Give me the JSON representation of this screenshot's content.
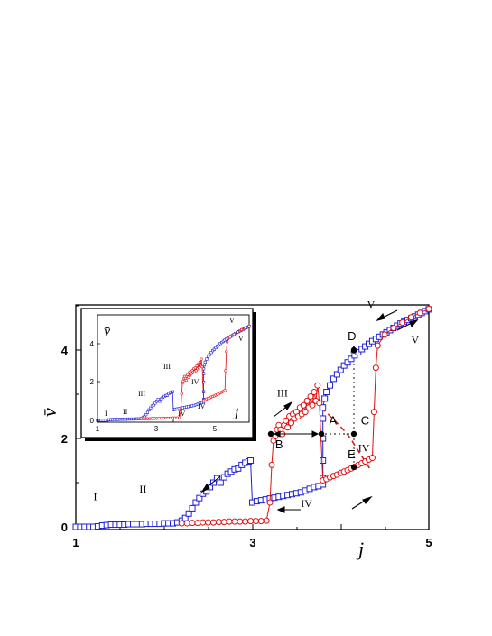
{
  "chart_data": {
    "type": "scatter",
    "xlabel": "j",
    "ylabel": "v̄",
    "xlim": [
      1,
      5
    ],
    "ylim": [
      -0.1,
      5.05
    ],
    "x_ticks": [
      "1",
      "3",
      "5"
    ],
    "y_ticks": [
      "0",
      "2",
      "4"
    ],
    "colors": {
      "decreasing": "#1f1fd6",
      "increasing": "#e01010"
    },
    "series": [
      {
        "key": "decreasing",
        "marker": "square",
        "points": [
          [
            1.0,
            0.0
          ],
          [
            1.05,
            0.0
          ],
          [
            1.1,
            0.0
          ],
          [
            1.15,
            0.0
          ],
          [
            1.2,
            0.0
          ],
          [
            1.25,
            0.01
          ],
          [
            1.3,
            0.03
          ],
          [
            1.35,
            0.04
          ],
          [
            1.4,
            0.05
          ],
          [
            1.45,
            0.05
          ],
          [
            1.5,
            0.05
          ],
          [
            1.55,
            0.05
          ],
          [
            1.6,
            0.06
          ],
          [
            1.65,
            0.06
          ],
          [
            1.7,
            0.06
          ],
          [
            1.75,
            0.06
          ],
          [
            1.8,
            0.07
          ],
          [
            1.85,
            0.07
          ],
          [
            1.9,
            0.07
          ],
          [
            1.95,
            0.07
          ],
          [
            2.0,
            0.08
          ],
          [
            2.05,
            0.08
          ],
          [
            2.1,
            0.08
          ],
          [
            2.15,
            0.1
          ],
          [
            2.2,
            0.14
          ],
          [
            2.24,
            0.2
          ],
          [
            2.28,
            0.3
          ],
          [
            2.32,
            0.42
          ],
          [
            2.36,
            0.55
          ],
          [
            2.4,
            0.65
          ],
          [
            2.44,
            0.75
          ],
          [
            2.48,
            0.8
          ],
          [
            2.52,
            0.9
          ],
          [
            2.56,
            1.0
          ],
          [
            2.6,
            1.1
          ],
          [
            2.64,
            1.0
          ],
          [
            2.68,
            1.12
          ],
          [
            2.72,
            1.2
          ],
          [
            2.76,
            1.25
          ],
          [
            2.8,
            1.3
          ],
          [
            2.84,
            1.32
          ],
          [
            2.88,
            1.4
          ],
          [
            2.92,
            1.45
          ],
          [
            2.96,
            1.48
          ],
          [
            2.98,
            1.5
          ],
          [
            3.0,
            0.55
          ],
          [
            3.05,
            0.58
          ],
          [
            3.1,
            0.6
          ],
          [
            3.15,
            0.62
          ],
          [
            3.2,
            0.64
          ],
          [
            3.25,
            0.66
          ],
          [
            3.3,
            0.68
          ],
          [
            3.35,
            0.7
          ],
          [
            3.4,
            0.72
          ],
          [
            3.45,
            0.74
          ],
          [
            3.5,
            0.76
          ],
          [
            3.55,
            0.78
          ],
          [
            3.6,
            0.82
          ],
          [
            3.65,
            0.86
          ],
          [
            3.7,
            0.9
          ],
          [
            3.75,
            0.92
          ],
          [
            3.8,
            0.96
          ],
          [
            3.8,
            1.1
          ],
          [
            3.8,
            1.5
          ],
          [
            3.8,
            2.0
          ],
          [
            3.8,
            2.45
          ],
          [
            3.8,
            2.7
          ],
          [
            3.82,
            2.9
          ],
          [
            3.84,
            3.05
          ],
          [
            3.88,
            3.2
          ],
          [
            3.92,
            3.35
          ],
          [
            3.96,
            3.45
          ],
          [
            4.0,
            3.55
          ],
          [
            4.04,
            3.65
          ],
          [
            4.08,
            3.72
          ],
          [
            4.12,
            3.8
          ],
          [
            4.16,
            3.88
          ],
          [
            4.2,
            3.95
          ],
          [
            4.24,
            4.02
          ],
          [
            4.28,
            4.08
          ],
          [
            4.32,
            4.14
          ],
          [
            4.36,
            4.2
          ],
          [
            4.4,
            4.25
          ],
          [
            4.44,
            4.3
          ],
          [
            4.48,
            4.35
          ],
          [
            4.52,
            4.4
          ],
          [
            4.56,
            4.45
          ],
          [
            4.6,
            4.5
          ],
          [
            4.64,
            4.55
          ],
          [
            4.68,
            4.6
          ],
          [
            4.72,
            4.64
          ],
          [
            4.76,
            4.68
          ],
          [
            4.8,
            4.72
          ],
          [
            4.84,
            4.76
          ],
          [
            4.88,
            4.8
          ],
          [
            4.92,
            4.84
          ],
          [
            4.96,
            4.88
          ],
          [
            5.0,
            4.92
          ]
        ]
      },
      {
        "key": "increasing",
        "marker": "circle",
        "points": [
          [
            2.2,
            0.08
          ],
          [
            2.26,
            0.08
          ],
          [
            2.32,
            0.09
          ],
          [
            2.38,
            0.09
          ],
          [
            2.44,
            0.1
          ],
          [
            2.5,
            0.1
          ],
          [
            2.56,
            0.1
          ],
          [
            2.62,
            0.11
          ],
          [
            2.68,
            0.11
          ],
          [
            2.74,
            0.12
          ],
          [
            2.8,
            0.12
          ],
          [
            2.86,
            0.12
          ],
          [
            2.92,
            0.12
          ],
          [
            2.98,
            0.13
          ],
          [
            3.04,
            0.13
          ],
          [
            3.1,
            0.13
          ],
          [
            3.16,
            0.14
          ],
          [
            3.2,
            0.55
          ],
          [
            3.22,
            1.4
          ],
          [
            3.24,
            1.95
          ],
          [
            3.26,
            2.05
          ],
          [
            3.28,
            2.2
          ],
          [
            3.3,
            2.3
          ],
          [
            3.32,
            2.2
          ],
          [
            3.34,
            2.1
          ],
          [
            3.36,
            2.3
          ],
          [
            3.38,
            2.4
          ],
          [
            3.4,
            2.25
          ],
          [
            3.42,
            2.5
          ],
          [
            3.44,
            2.35
          ],
          [
            3.46,
            2.55
          ],
          [
            3.48,
            2.45
          ],
          [
            3.5,
            2.6
          ],
          [
            3.52,
            2.5
          ],
          [
            3.54,
            2.7
          ],
          [
            3.56,
            2.55
          ],
          [
            3.58,
            2.75
          ],
          [
            3.6,
            2.6
          ],
          [
            3.62,
            2.85
          ],
          [
            3.64,
            2.7
          ],
          [
            3.66,
            2.95
          ],
          [
            3.68,
            2.75
          ],
          [
            3.7,
            3.05
          ],
          [
            3.72,
            2.85
          ],
          [
            3.74,
            3.2
          ],
          [
            3.76,
            2.8
          ],
          [
            3.8,
            1.05
          ],
          [
            3.84,
            1.08
          ],
          [
            3.88,
            1.12
          ],
          [
            3.92,
            1.15
          ],
          [
            3.96,
            1.18
          ],
          [
            4.0,
            1.22
          ],
          [
            4.04,
            1.25
          ],
          [
            4.08,
            1.28
          ],
          [
            4.12,
            1.32
          ],
          [
            4.16,
            1.36
          ],
          [
            4.2,
            1.4
          ],
          [
            4.24,
            1.44
          ],
          [
            4.28,
            1.48
          ],
          [
            4.32,
            1.52
          ],
          [
            4.36,
            1.56
          ],
          [
            4.38,
            2.6
          ],
          [
            4.4,
            3.6
          ],
          [
            4.42,
            4.1
          ],
          [
            4.5,
            4.35
          ],
          [
            4.6,
            4.5
          ],
          [
            4.7,
            4.62
          ],
          [
            4.8,
            4.74
          ],
          [
            4.9,
            4.84
          ],
          [
            5.0,
            4.93
          ]
        ]
      }
    ],
    "annotations": [
      {
        "text": "I",
        "x": 1.2,
        "y": 0.6
      },
      {
        "text": "II",
        "x": 1.72,
        "y": 0.78
      },
      {
        "text": "III",
        "x": 2.45,
        "y": 2.95
      },
      {
        "text": "III",
        "x": 3.28,
        "y": 2.95
      },
      {
        "text": "IV",
        "x": 3.55,
        "y": 0.45
      },
      {
        "text": "IV",
        "x": 4.2,
        "y": 1.7
      },
      {
        "text": "V",
        "x": 4.3,
        "y": 4.95
      },
      {
        "text": "V",
        "x": 4.8,
        "y": 4.15
      },
      {
        "text": "A",
        "x": 3.87,
        "y": 2.32
      },
      {
        "text": "B",
        "x": 3.26,
        "y": 1.78
      },
      {
        "text": "C",
        "x": 4.23,
        "y": 2.32
      },
      {
        "text": "D",
        "x": 4.08,
        "y": 4.22
      },
      {
        "text": "E",
        "x": 4.08,
        "y": 1.55
      }
    ],
    "inset": {
      "xlabel": "j",
      "ylabel": "v̄",
      "x_ticks": [
        "1",
        "3",
        "5"
      ],
      "y_ticks": [
        "0",
        "2",
        "4"
      ],
      "annotations": [
        "I",
        "II",
        "III",
        "III",
        "IV",
        "IV",
        "IV",
        "V",
        "V"
      ]
    }
  }
}
